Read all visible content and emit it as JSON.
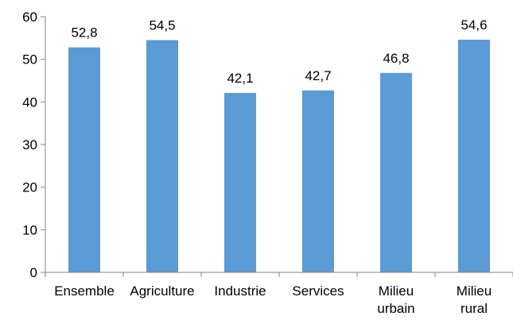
{
  "chart_data": {
    "type": "bar",
    "categories": [
      [
        "Ensemble"
      ],
      [
        "Agriculture"
      ],
      [
        "Industrie"
      ],
      [
        "Services"
      ],
      [
        "Milieu",
        "urbain"
      ],
      [
        "Milieu",
        "rural"
      ]
    ],
    "values": [
      52.8,
      54.5,
      42.1,
      42.7,
      46.8,
      54.6
    ],
    "value_labels": [
      "52,8",
      "54,5",
      "42,1",
      "42,7",
      "46,8",
      "54,6"
    ],
    "ylim": [
      0,
      60
    ],
    "yticks": [
      0,
      10,
      20,
      30,
      40,
      50,
      60
    ],
    "grid": false,
    "legend": "none",
    "bar_color": "#5b9bd5",
    "axis_color": "#868686"
  }
}
